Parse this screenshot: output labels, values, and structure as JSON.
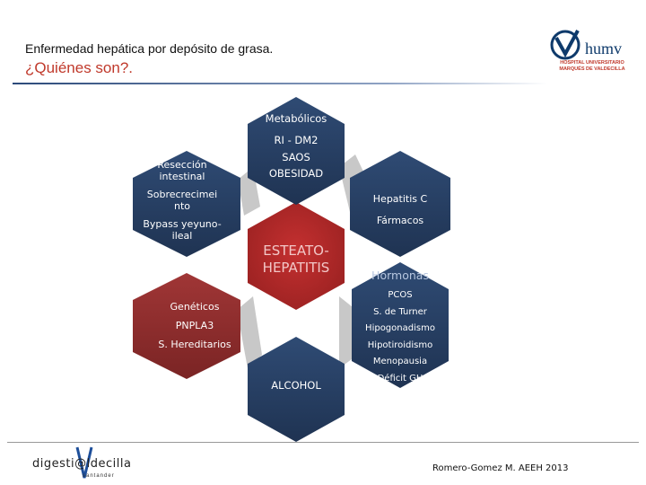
{
  "header": {
    "title": "Enfermedad hepática por depósito de grasa.",
    "subtitle": "¿Quiénes son?."
  },
  "logo_humv": {
    "brand": "humv",
    "sub1": "HOSPITAL UNIVERSITARIO",
    "sub2": "MARQUÉS DE VALDECILLA"
  },
  "hexagons": {
    "center": {
      "line1": "ESTEATO-",
      "line2": "HEPATITIS"
    },
    "metabolicos": {
      "title": "Metabólicos",
      "l1": "RI - DM2",
      "l2": "SAOS",
      "l3": "OBESIDAD"
    },
    "reseccion": {
      "l1a": "Resección",
      "l1b": "intestinal",
      "l2a": "Sobrecrecimei",
      "l2b": "nto",
      "l3a": "Bypass yeyuno-",
      "l3b": "ileal"
    },
    "hepatitis": {
      "l1": "Hepatitis C",
      "l2": "Fármacos"
    },
    "hormonas": {
      "title": "Hormonas",
      "items": [
        "PCOS",
        "S. de Turner",
        "Hipogonadismo",
        "Hipotiroidismo",
        "Menopausia",
        "Déficit GH"
      ]
    },
    "geneticos": {
      "l1": "Genéticos",
      "l2": "PNPLA3",
      "l3": "S. Hereditarios"
    },
    "alcohol": {
      "label": "ALCOHOL"
    }
  },
  "colors": {
    "navy": "#263e62",
    "red": "#8e2d2d",
    "center_red": "#b52a2a",
    "gray": "#c8c8c8"
  },
  "footer": {
    "logo_word": "digesti@ldecilla",
    "logo_small": "santander",
    "credit": "Romero-Gomez M. AEEH 2013"
  }
}
